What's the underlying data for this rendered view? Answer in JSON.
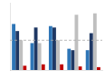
{
  "chart_data": {
    "type": "bar",
    "categories": [
      null,
      null,
      null,
      null,
      null
    ],
    "series": [
      {
        "color": "#2E75B6",
        "values": [
          65,
          38,
          62,
          30,
          28
        ]
      },
      {
        "color": "#1F3864",
        "values": [
          55,
          60,
          60,
          28,
          52
        ]
      },
      {
        "color": "#BFBFBF",
        "values": [
          42,
          38,
          42,
          78,
          80
        ]
      },
      {
        "color": "#C00000",
        "values": [
          6,
          8,
          8,
          5,
          4
        ]
      }
    ],
    "ylim": [
      0,
      95
    ],
    "reference_line": 42,
    "grid": false,
    "tick_labels": false
  }
}
